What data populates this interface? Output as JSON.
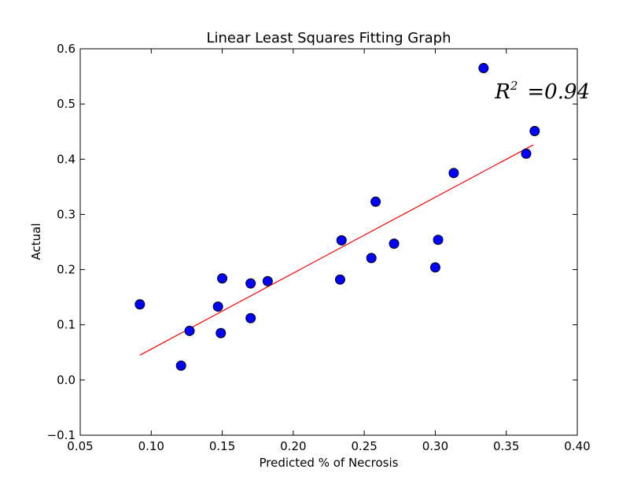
{
  "chart_data": {
    "type": "scatter",
    "title": "Linear Least Squares Fitting Graph",
    "xlabel": "Predicted % of Necrosis",
    "ylabel": "Actual",
    "xlim": [
      0.05,
      0.4
    ],
    "ylim": [
      -0.1,
      0.6
    ],
    "xticks": [
      0.05,
      0.1,
      0.15,
      0.2,
      0.25,
      0.3,
      0.35,
      0.4
    ],
    "xtick_labels": [
      "0.05",
      "0.10",
      "0.15",
      "0.20",
      "0.25",
      "0.30",
      "0.35",
      "0.40"
    ],
    "yticks": [
      -0.1,
      0.0,
      0.1,
      0.2,
      0.3,
      0.4,
      0.5,
      0.6
    ],
    "ytick_labels": [
      "−0.1",
      "0.0",
      "0.1",
      "0.2",
      "0.3",
      "0.4",
      "0.5",
      "0.6"
    ],
    "grid": false,
    "points": [
      {
        "x": 0.092,
        "y": 0.137
      },
      {
        "x": 0.121,
        "y": 0.026
      },
      {
        "x": 0.127,
        "y": 0.089
      },
      {
        "x": 0.147,
        "y": 0.133
      },
      {
        "x": 0.149,
        "y": 0.085
      },
      {
        "x": 0.15,
        "y": 0.184
      },
      {
        "x": 0.17,
        "y": 0.112
      },
      {
        "x": 0.17,
        "y": 0.175
      },
      {
        "x": 0.182,
        "y": 0.179
      },
      {
        "x": 0.233,
        "y": 0.182
      },
      {
        "x": 0.234,
        "y": 0.253
      },
      {
        "x": 0.255,
        "y": 0.221
      },
      {
        "x": 0.258,
        "y": 0.323
      },
      {
        "x": 0.271,
        "y": 0.247
      },
      {
        "x": 0.3,
        "y": 0.204
      },
      {
        "x": 0.302,
        "y": 0.254
      },
      {
        "x": 0.313,
        "y": 0.375
      },
      {
        "x": 0.334,
        "y": 0.565
      },
      {
        "x": 0.364,
        "y": 0.41
      },
      {
        "x": 0.37,
        "y": 0.451
      }
    ],
    "fit_line": {
      "x": [
        0.092,
        0.369
      ],
      "y": [
        0.045,
        0.426
      ]
    },
    "colors": {
      "marker": "#0000ff",
      "marker_edge": "#000000",
      "fit_line": "#ff0000"
    },
    "annotation": {
      "label": "R² =0.94",
      "var": "R",
      "exp": "2",
      "rest": "=0.94",
      "x": 0.342,
      "y": 0.51
    }
  }
}
